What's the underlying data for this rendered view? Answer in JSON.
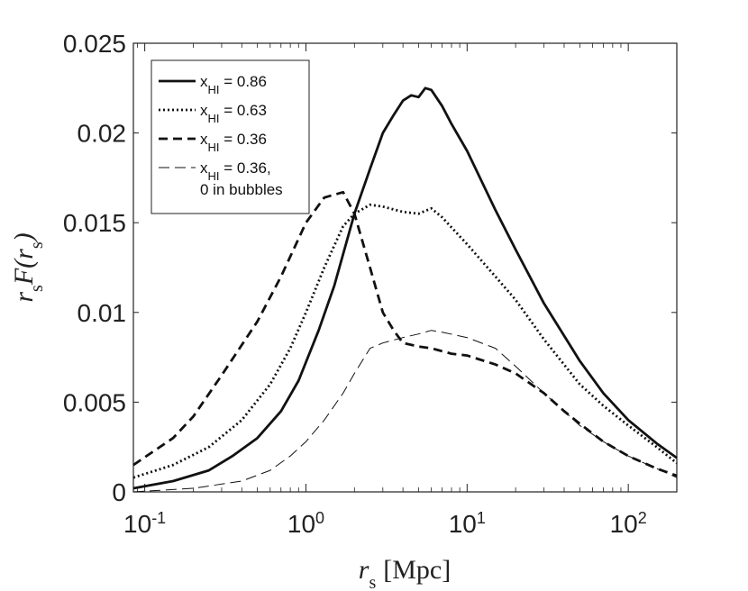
{
  "chart_data": {
    "type": "line",
    "xscale": "log",
    "xlim": [
      0.085,
      200
    ],
    "ylim": [
      0,
      0.025
    ],
    "xlabel_main": "r",
    "xlabel_sub": "s",
    "xlabel_unit": "[Mpc]",
    "ylabel_main": "r",
    "ylabel_sub": "s",
    "ylabel_func": "F(r",
    "ylabel_func_sub": "s",
    "ylabel_close": ")",
    "yticks": [
      "0",
      "0.005",
      "0.01",
      "0.015",
      "0.02",
      "0.025"
    ],
    "ytick_values": [
      0,
      0.005,
      0.01,
      0.015,
      0.02,
      0.025
    ],
    "xticks": [
      {
        "value": 0.1,
        "base": "10",
        "exp": "-1"
      },
      {
        "value": 1,
        "base": "10",
        "exp": "0"
      },
      {
        "value": 10,
        "base": "10",
        "exp": "1"
      },
      {
        "value": 100,
        "base": "10",
        "exp": "2"
      }
    ],
    "legend": {
      "placement": "top-left",
      "entries": [
        {
          "series": 0,
          "prefix": "x",
          "sub": "HI",
          "text": " = 0.86",
          "text2": ""
        },
        {
          "series": 1,
          "prefix": "x",
          "sub": "HI",
          "text": " = 0.63",
          "text2": ""
        },
        {
          "series": 2,
          "prefix": "x",
          "sub": "HI",
          "text": " = 0.36",
          "text2": ""
        },
        {
          "series": 3,
          "prefix": "x",
          "sub": "HI",
          "text": " = 0.36,",
          "text2": "0 in bubbles"
        }
      ]
    },
    "series": [
      {
        "name": "xHI = 0.86",
        "style": "solid",
        "points": [
          [
            0.085,
            0.0002
          ],
          [
            0.15,
            0.0006
          ],
          [
            0.25,
            0.0012
          ],
          [
            0.35,
            0.002
          ],
          [
            0.5,
            0.003
          ],
          [
            0.7,
            0.0045
          ],
          [
            0.9,
            0.0062
          ],
          [
            1.2,
            0.009
          ],
          [
            1.5,
            0.0115
          ],
          [
            2.0,
            0.0155
          ],
          [
            2.5,
            0.018
          ],
          [
            3.0,
            0.02
          ],
          [
            3.5,
            0.021
          ],
          [
            4.0,
            0.0218
          ],
          [
            4.5,
            0.0221
          ],
          [
            5.0,
            0.022
          ],
          [
            5.5,
            0.0225
          ],
          [
            6.0,
            0.0224
          ],
          [
            7.0,
            0.0215
          ],
          [
            8.0,
            0.0205
          ],
          [
            10,
            0.019
          ],
          [
            15,
            0.0157
          ],
          [
            20,
            0.0135
          ],
          [
            30,
            0.0105
          ],
          [
            40,
            0.0087
          ],
          [
            50,
            0.0073
          ],
          [
            70,
            0.0055
          ],
          [
            100,
            0.004
          ],
          [
            150,
            0.0027
          ],
          [
            200,
            0.0019
          ]
        ]
      },
      {
        "name": "xHI = 0.63",
        "style": "dotted",
        "points": [
          [
            0.085,
            0.0008
          ],
          [
            0.15,
            0.0015
          ],
          [
            0.25,
            0.0025
          ],
          [
            0.4,
            0.004
          ],
          [
            0.6,
            0.006
          ],
          [
            0.8,
            0.008
          ],
          [
            1.0,
            0.01
          ],
          [
            1.3,
            0.0125
          ],
          [
            1.7,
            0.0148
          ],
          [
            2.0,
            0.0155
          ],
          [
            2.5,
            0.016
          ],
          [
            3.0,
            0.0159
          ],
          [
            4.0,
            0.0156
          ],
          [
            5.0,
            0.0155
          ],
          [
            6.0,
            0.0158
          ],
          [
            7.0,
            0.0153
          ],
          [
            10,
            0.0138
          ],
          [
            15,
            0.012
          ],
          [
            20,
            0.0107
          ],
          [
            30,
            0.0085
          ],
          [
            50,
            0.006
          ],
          [
            70,
            0.0048
          ],
          [
            100,
            0.0037
          ],
          [
            150,
            0.0025
          ],
          [
            200,
            0.0016
          ]
        ]
      },
      {
        "name": "xHI = 0.36",
        "style": "dashed",
        "points": [
          [
            0.085,
            0.0015
          ],
          [
            0.15,
            0.003
          ],
          [
            0.2,
            0.0042
          ],
          [
            0.3,
            0.0065
          ],
          [
            0.5,
            0.0095
          ],
          [
            0.7,
            0.012
          ],
          [
            1.0,
            0.015
          ],
          [
            1.3,
            0.0164
          ],
          [
            1.7,
            0.0167
          ],
          [
            2.0,
            0.0155
          ],
          [
            2.5,
            0.0125
          ],
          [
            3.0,
            0.01
          ],
          [
            3.5,
            0.009
          ],
          [
            4.0,
            0.0083
          ],
          [
            5.0,
            0.0081
          ],
          [
            6.0,
            0.008
          ],
          [
            8.0,
            0.0077
          ],
          [
            10,
            0.0076
          ],
          [
            15,
            0.0071
          ],
          [
            20,
            0.0066
          ],
          [
            30,
            0.0055
          ],
          [
            40,
            0.0045
          ],
          [
            50,
            0.0038
          ],
          [
            70,
            0.0028
          ],
          [
            100,
            0.002
          ],
          [
            150,
            0.0013
          ],
          [
            200,
            0.0009
          ]
        ]
      },
      {
        "name": "xHI = 0.36, 0 in bubbles",
        "style": "thin-dashed",
        "points": [
          [
            0.085,
            0.0
          ],
          [
            0.2,
            0.0002
          ],
          [
            0.4,
            0.0006
          ],
          [
            0.6,
            0.0012
          ],
          [
            0.8,
            0.002
          ],
          [
            1.0,
            0.0028
          ],
          [
            1.3,
            0.004
          ],
          [
            1.7,
            0.0055
          ],
          [
            2.0,
            0.0066
          ],
          [
            2.5,
            0.008
          ],
          [
            3.0,
            0.0083
          ],
          [
            4.0,
            0.0086
          ],
          [
            5.0,
            0.0088
          ],
          [
            6.0,
            0.009
          ],
          [
            7.0,
            0.0089
          ],
          [
            10,
            0.0086
          ],
          [
            15,
            0.008
          ],
          [
            20,
            0.007
          ],
          [
            30,
            0.0055
          ],
          [
            40,
            0.0045
          ],
          [
            50,
            0.0037
          ],
          [
            70,
            0.0028
          ],
          [
            100,
            0.002
          ],
          [
            150,
            0.0013
          ],
          [
            200,
            0.0008
          ]
        ]
      }
    ]
  }
}
